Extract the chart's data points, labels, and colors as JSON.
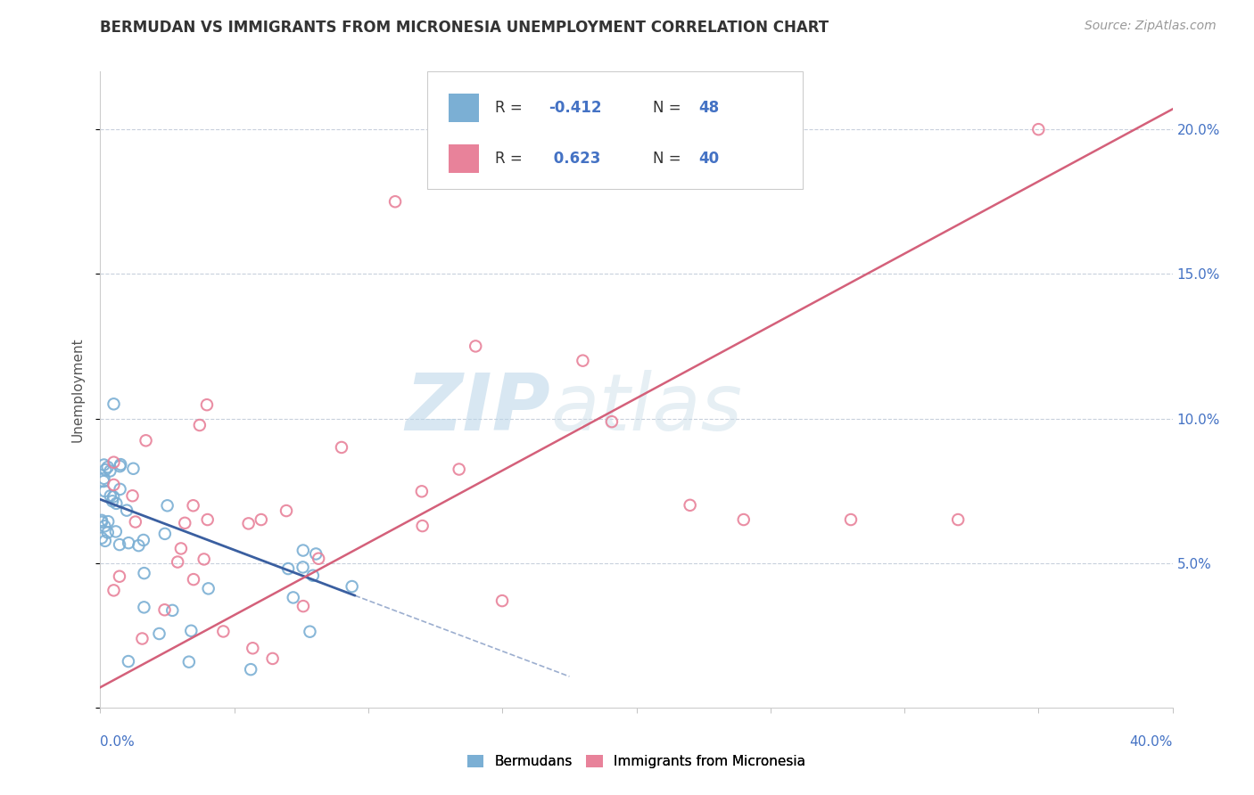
{
  "title": "BERMUDAN VS IMMIGRANTS FROM MICRONESIA UNEMPLOYMENT CORRELATION CHART",
  "source_text": "Source: ZipAtlas.com",
  "ylabel": "Unemployment",
  "xlim": [
    0.0,
    0.4
  ],
  "ylim": [
    0.0,
    0.22
  ],
  "watermark_zip": "ZIP",
  "watermark_atlas": "atlas",
  "color_bermuda": "#7bafd4",
  "color_micronesia": "#e8829a",
  "color_trend_bermuda": "#3a5fa0",
  "color_trend_micronesia": "#d4607a",
  "color_blue_text": "#4472c4",
  "background_color": "#ffffff",
  "grid_color": "#c8d0dc",
  "title_color": "#333333",
  "source_color": "#999999"
}
